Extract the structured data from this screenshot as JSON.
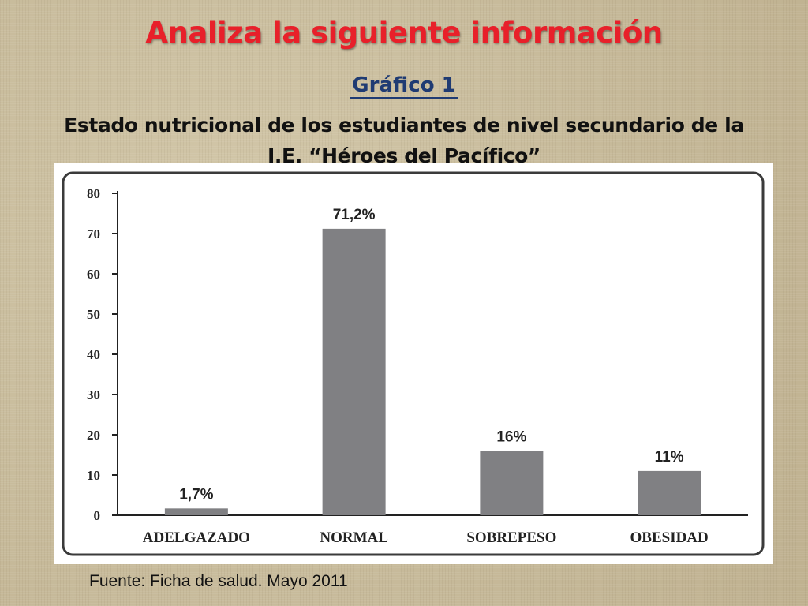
{
  "slide": {
    "title": "Analiza la siguiente información",
    "chart_number": "Gráfico 1",
    "subtitle": "Estado nutricional de los estudiantes de nivel secundario de la I.E. “Héroes del Pacífico”",
    "source": "Fuente: Ficha de salud. Mayo 2011"
  },
  "chart_data": {
    "type": "bar",
    "categories": [
      "ADELGAZADO",
      "NORMAL",
      "SOBREPESO",
      "OBESIDAD"
    ],
    "values": [
      1.7,
      71.2,
      16,
      11
    ],
    "data_labels": [
      "1,7%",
      "71,2%",
      "16%",
      "11%"
    ],
    "yticks": [
      "0",
      "10",
      "20",
      "30",
      "40",
      "50",
      "60",
      "70",
      "80"
    ],
    "ylim": [
      0,
      80
    ],
    "grid": false,
    "legend": "none",
    "bar_color": "#808083",
    "frame_color": "#3b3b3b"
  }
}
